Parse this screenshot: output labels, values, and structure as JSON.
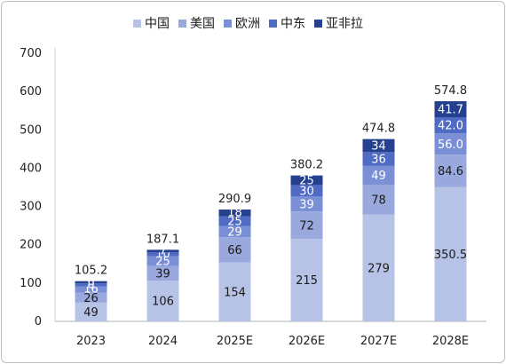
{
  "chart_data": {
    "type": "bar",
    "stacked": true,
    "categories": [
      "2023",
      "2024",
      "2025E",
      "2026E",
      "2027E",
      "2028E"
    ],
    "series": [
      {
        "name": "中国",
        "color": "#b7c3e6",
        "values": [
          49,
          106,
          154,
          215,
          279,
          350.5
        ],
        "labels": [
          "49",
          "106",
          "154",
          "215",
          "279",
          "350.5"
        ]
      },
      {
        "name": "美国",
        "color": "#9aa9dd",
        "values": [
          26,
          39,
          66,
          72,
          78,
          84.6
        ],
        "labels": [
          "26",
          "39",
          "66",
          "72",
          "78",
          "84.6"
        ]
      },
      {
        "name": "欧洲",
        "color": "#7a8fd5",
        "values": [
          16,
          25,
          29,
          39,
          49,
          56.0
        ],
        "labels": [
          "16",
          "25",
          "29",
          "39",
          "49",
          "56.0"
        ]
      },
      {
        "name": "中东",
        "color": "#4f6bc4",
        "values": [
          8,
          10,
          25,
          30,
          36,
          42.0
        ],
        "labels": [
          "8",
          "10",
          "25",
          "30",
          "36",
          "42.0"
        ]
      },
      {
        "name": "亚非拉",
        "color": "#24408f",
        "values": [
          6,
          7,
          18,
          25,
          34,
          41.7
        ],
        "labels": [
          "6",
          "7",
          "18",
          "25",
          "34",
          "41.7"
        ]
      }
    ],
    "totals": [
      "105.2",
      "187.1",
      "290.9",
      "380.2",
      "474.8",
      "574.8"
    ],
    "ylim": [
      0,
      700
    ],
    "yticks": [
      0,
      100,
      200,
      300,
      400,
      500,
      600,
      700
    ],
    "grid": false,
    "legend_position": "top"
  }
}
